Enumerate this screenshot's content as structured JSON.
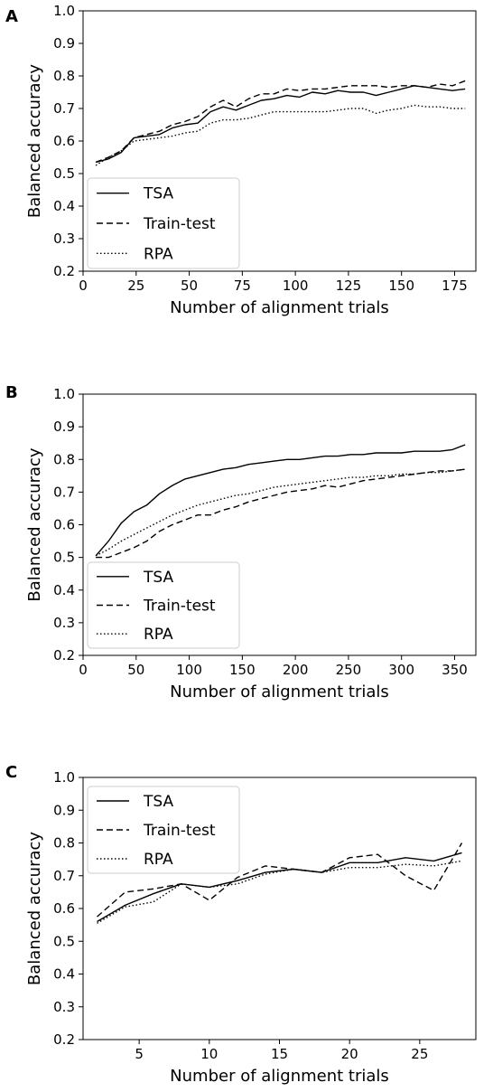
{
  "chart_data": [
    {
      "panel": "A",
      "type": "line",
      "xlabel": "Number of alignment trials",
      "ylabel": "Balanced accuracy",
      "xlim": [
        0,
        185
      ],
      "ylim": [
        0.2,
        1.0
      ],
      "xticks": [
        "0",
        "25",
        "50",
        "75",
        "100",
        "125",
        "150",
        "175"
      ],
      "yticks": [
        "0.2",
        "0.3",
        "0.4",
        "0.5",
        "0.6",
        "0.7",
        "0.8",
        "0.9",
        "1.0"
      ],
      "legend_position": "lower-left",
      "series": [
        {
          "name": "TSA",
          "style": "solid",
          "x": [
            6,
            12,
            18,
            24,
            30,
            36,
            42,
            48,
            54,
            60,
            66,
            72,
            78,
            84,
            90,
            96,
            102,
            108,
            114,
            120,
            126,
            132,
            138,
            144,
            150,
            156,
            162,
            168,
            174,
            180
          ],
          "y": [
            0.535,
            0.545,
            0.565,
            0.61,
            0.615,
            0.62,
            0.64,
            0.65,
            0.655,
            0.69,
            0.705,
            0.695,
            0.71,
            0.725,
            0.73,
            0.74,
            0.735,
            0.75,
            0.745,
            0.755,
            0.75,
            0.75,
            0.74,
            0.75,
            0.76,
            0.77,
            0.765,
            0.76,
            0.755,
            0.76
          ]
        },
        {
          "name": "Train-test",
          "style": "dashed",
          "x": [
            6,
            12,
            18,
            24,
            30,
            36,
            42,
            48,
            54,
            60,
            66,
            72,
            78,
            84,
            90,
            96,
            102,
            108,
            114,
            120,
            126,
            132,
            138,
            144,
            150,
            156,
            162,
            168,
            174,
            180
          ],
          "y": [
            0.535,
            0.55,
            0.57,
            0.61,
            0.62,
            0.63,
            0.65,
            0.66,
            0.675,
            0.705,
            0.725,
            0.705,
            0.73,
            0.745,
            0.745,
            0.76,
            0.755,
            0.76,
            0.76,
            0.765,
            0.77,
            0.77,
            0.77,
            0.765,
            0.77,
            0.77,
            0.765,
            0.775,
            0.77,
            0.785
          ]
        },
        {
          "name": "RPA",
          "style": "dotted",
          "x": [
            6,
            12,
            18,
            24,
            30,
            36,
            42,
            48,
            54,
            60,
            66,
            72,
            78,
            84,
            90,
            96,
            102,
            108,
            114,
            120,
            126,
            132,
            138,
            144,
            150,
            156,
            162,
            168,
            174,
            180
          ],
          "y": [
            0.525,
            0.55,
            0.57,
            0.6,
            0.605,
            0.61,
            0.615,
            0.625,
            0.63,
            0.655,
            0.665,
            0.665,
            0.67,
            0.68,
            0.69,
            0.69,
            0.69,
            0.69,
            0.69,
            0.695,
            0.7,
            0.7,
            0.685,
            0.695,
            0.7,
            0.71,
            0.705,
            0.705,
            0.7,
            0.7
          ]
        }
      ]
    },
    {
      "panel": "B",
      "type": "line",
      "xlabel": "Number of alignment trials",
      "ylabel": "Balanced accuracy",
      "xlim": [
        0,
        370
      ],
      "ylim": [
        0.2,
        1.0
      ],
      "xticks": [
        "0",
        "50",
        "100",
        "150",
        "200",
        "250",
        "300",
        "350"
      ],
      "yticks": [
        "0.2",
        "0.3",
        "0.4",
        "0.5",
        "0.6",
        "0.7",
        "0.8",
        "0.9",
        "1.0"
      ],
      "legend_position": "lower-left",
      "series": [
        {
          "name": "TSA",
          "style": "solid",
          "x": [
            12,
            24,
            36,
            48,
            60,
            72,
            84,
            96,
            108,
            120,
            132,
            144,
            156,
            168,
            180,
            192,
            204,
            216,
            228,
            240,
            252,
            264,
            276,
            288,
            300,
            312,
            324,
            336,
            348,
            360
          ],
          "y": [
            0.505,
            0.55,
            0.605,
            0.64,
            0.66,
            0.695,
            0.72,
            0.74,
            0.75,
            0.76,
            0.77,
            0.775,
            0.785,
            0.79,
            0.795,
            0.8,
            0.8,
            0.805,
            0.81,
            0.81,
            0.815,
            0.815,
            0.82,
            0.82,
            0.82,
            0.825,
            0.825,
            0.825,
            0.83,
            0.845
          ]
        },
        {
          "name": "Train-test",
          "style": "dashed",
          "x": [
            12,
            24,
            36,
            48,
            60,
            72,
            84,
            96,
            108,
            120,
            132,
            144,
            156,
            168,
            180,
            192,
            204,
            216,
            228,
            240,
            252,
            264,
            276,
            288,
            300,
            312,
            324,
            336,
            348,
            360
          ],
          "y": [
            0.5,
            0.5,
            0.515,
            0.53,
            0.55,
            0.58,
            0.6,
            0.615,
            0.63,
            0.63,
            0.645,
            0.655,
            0.67,
            0.68,
            0.69,
            0.7,
            0.705,
            0.71,
            0.72,
            0.715,
            0.725,
            0.735,
            0.74,
            0.745,
            0.75,
            0.755,
            0.76,
            0.765,
            0.765,
            0.77
          ]
        },
        {
          "name": "RPA",
          "style": "dotted",
          "x": [
            12,
            24,
            36,
            48,
            60,
            72,
            84,
            96,
            108,
            120,
            132,
            144,
            156,
            168,
            180,
            192,
            204,
            216,
            228,
            240,
            252,
            264,
            276,
            288,
            300,
            312,
            324,
            336,
            348,
            360
          ],
          "y": [
            0.505,
            0.525,
            0.55,
            0.57,
            0.59,
            0.61,
            0.63,
            0.645,
            0.66,
            0.67,
            0.68,
            0.69,
            0.695,
            0.705,
            0.715,
            0.72,
            0.725,
            0.73,
            0.735,
            0.74,
            0.745,
            0.745,
            0.75,
            0.75,
            0.755,
            0.755,
            0.76,
            0.76,
            0.765,
            0.77
          ]
        }
      ]
    },
    {
      "panel": "C",
      "type": "line",
      "xlabel": "Number of alignment trials",
      "ylabel": "Balanced accuracy",
      "xlim": [
        1,
        29
      ],
      "ylim": [
        0.2,
        1.0
      ],
      "xticks": [
        "5",
        "10",
        "15",
        "20",
        "25"
      ],
      "yticks": [
        "0.2",
        "0.3",
        "0.4",
        "0.5",
        "0.6",
        "0.7",
        "0.8",
        "0.9",
        "1.0"
      ],
      "legend_position": "upper-left",
      "series": [
        {
          "name": "TSA",
          "style": "solid",
          "x": [
            2,
            4,
            6,
            8,
            10,
            12,
            14,
            16,
            18,
            20,
            22,
            24,
            26,
            28
          ],
          "y": [
            0.56,
            0.61,
            0.645,
            0.675,
            0.665,
            0.685,
            0.71,
            0.72,
            0.71,
            0.74,
            0.74,
            0.755,
            0.745,
            0.77
          ]
        },
        {
          "name": "Train-test",
          "style": "dashed",
          "x": [
            2,
            4,
            6,
            8,
            10,
            12,
            14,
            16,
            18,
            20,
            22,
            24,
            26,
            28
          ],
          "y": [
            0.575,
            0.65,
            0.66,
            0.675,
            0.625,
            0.695,
            0.73,
            0.72,
            0.71,
            0.755,
            0.765,
            0.7,
            0.655,
            0.8
          ]
        },
        {
          "name": "RPA",
          "style": "dotted",
          "x": [
            2,
            4,
            6,
            8,
            10,
            12,
            14,
            16,
            18,
            20,
            22,
            24,
            26,
            28
          ],
          "y": [
            0.555,
            0.605,
            0.62,
            0.675,
            0.665,
            0.675,
            0.705,
            0.72,
            0.71,
            0.725,
            0.725,
            0.735,
            0.73,
            0.745
          ]
        }
      ]
    }
  ]
}
